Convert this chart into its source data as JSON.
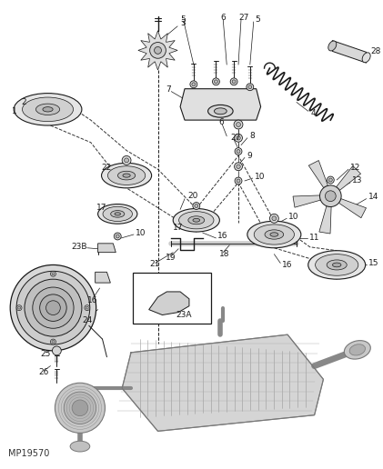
{
  "bg_color": "#f5f5f0",
  "watermark": "MP19570",
  "fig_width": 4.21,
  "fig_height": 5.16,
  "dpi": 100
}
